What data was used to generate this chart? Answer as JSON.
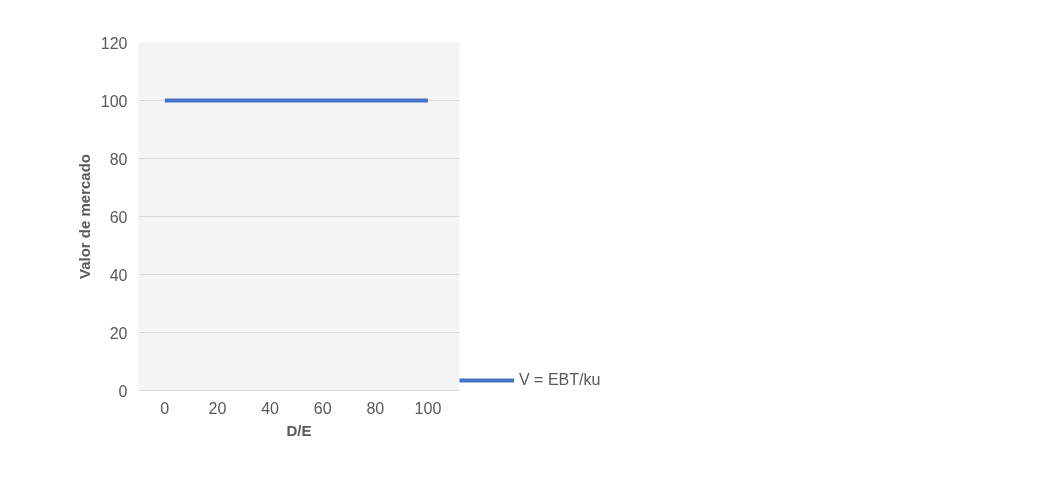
{
  "chart_data": {
    "type": "line",
    "xlabel": "D/E",
    "ylabel": "Valor de mercado",
    "x": [
      0,
      100
    ],
    "series": [
      {
        "name": "V = EBT/ku",
        "color": "#4472c4",
        "values": [
          100,
          100
        ]
      }
    ],
    "xlim": [
      -10,
      112
    ],
    "xticks": [
      0,
      20,
      40,
      60,
      80,
      100
    ],
    "ylim": [
      0,
      120
    ],
    "yticks": [
      0,
      20,
      40,
      60,
      80,
      100,
      120
    ],
    "grid": "y",
    "legend": "right",
    "marker": "none",
    "line_style": "solid"
  }
}
